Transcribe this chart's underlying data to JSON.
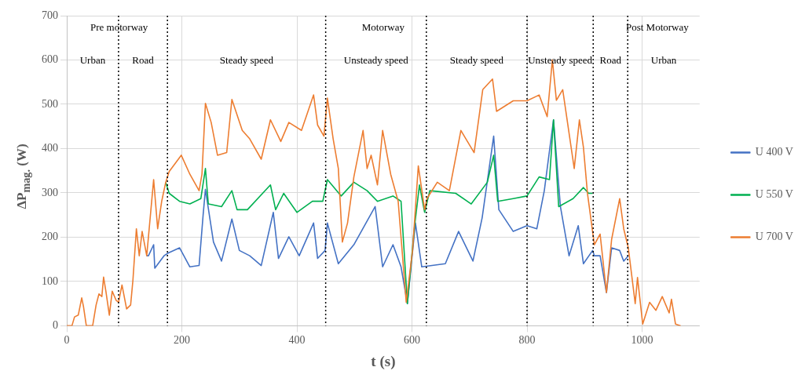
{
  "chart_data": {
    "type": "line",
    "xlabel": "t (s)",
    "ylabel": "ΔP$_{mag.}$ (W)",
    "xlim": [
      0,
      1100
    ],
    "xticks": [
      0,
      200,
      400,
      600,
      800,
      1000
    ],
    "ylim": [
      0,
      700
    ],
    "yticks": [
      0,
      100,
      200,
      300,
      400,
      500,
      600,
      700
    ],
    "grid": true,
    "legend": "right",
    "marker": "none",
    "line_style": "solid",
    "ref_lines": [
      {
        "axis": "x",
        "value": 90,
        "color": "#000000",
        "line_style": "dotted"
      },
      {
        "axis": "x",
        "value": 175,
        "color": "#000000",
        "line_style": "dotted"
      },
      {
        "axis": "x",
        "value": 450,
        "color": "#000000",
        "line_style": "dotted"
      },
      {
        "axis": "x",
        "value": 625,
        "color": "#000000",
        "line_style": "dotted"
      },
      {
        "axis": "x",
        "value": 800,
        "color": "#000000",
        "line_style": "dotted"
      },
      {
        "axis": "x",
        "value": 915,
        "color": "#000000",
        "line_style": "dotted"
      },
      {
        "axis": "x",
        "value": 975,
        "color": "#000000",
        "line_style": "dotted"
      }
    ],
    "annotations": [
      "Pre motorway",
      "Motorway",
      "Post Motorway",
      "Urban",
      "Road",
      "Steady speed",
      "Unsteady speed",
      "Steady speed",
      "Unsteady speed",
      "Road",
      "Urban"
    ],
    "series": [
      {
        "name": "U 400 V",
        "color": "#4472c4",
        "x": [
          139,
          142,
          151,
          153,
          169,
          176,
          196,
          214,
          230,
          237,
          241,
          255,
          269,
          287,
          300,
          318,
          338,
          359,
          368,
          386,
          404,
          429,
          436,
          449,
          453,
          472,
          499,
          536,
          549,
          567,
          581,
          592,
          606,
          617,
          658,
          681,
          706,
          722,
          742,
          751,
          776,
          800,
          817,
          830,
          846,
          858,
          873,
          889,
          898,
          914,
          917,
          927,
          938,
          947,
          961,
          968,
          976
        ],
        "values": [
          158,
          158,
          183,
          130,
          158,
          164,
          176,
          133,
          136,
          250,
          308,
          189,
          146,
          241,
          170,
          158,
          136,
          256,
          152,
          201,
          158,
          232,
          152,
          170,
          232,
          140,
          183,
          269,
          133,
          183,
          133,
          50,
          232,
          133,
          140,
          213,
          146,
          244,
          428,
          262,
          213,
          226,
          219,
          305,
          465,
          269,
          158,
          226,
          140,
          170,
          158,
          158,
          75,
          176,
          170,
          146,
          158
        ]
      },
      {
        "name": "U 550 V",
        "color": "#00b050",
        "x": [
          172,
          178,
          196,
          214,
          233,
          241,
          246,
          269,
          287,
          296,
          314,
          354,
          363,
          377,
          400,
          427,
          445,
          453,
          477,
          499,
          522,
          540,
          567,
          581,
          592,
          604,
          613,
          622,
          631,
          676,
          703,
          731,
          742,
          749,
          776,
          800,
          821,
          839,
          846,
          855,
          880,
          898,
          907,
          914
        ],
        "values": [
          324,
          299,
          281,
          275,
          287,
          355,
          275,
          269,
          305,
          262,
          262,
          318,
          262,
          299,
          256,
          281,
          281,
          330,
          293,
          324,
          305,
          281,
          293,
          281,
          50,
          219,
          318,
          256,
          305,
          299,
          275,
          324,
          385,
          281,
          287,
          293,
          336,
          330,
          465,
          269,
          287,
          312,
          299,
          299
        ]
      },
      {
        "name": "U 700 V",
        "color": "#ed7d31",
        "x": [
          0,
          9,
          13.5,
          20,
          26,
          29,
          34,
          45,
          51,
          56,
          61,
          64,
          68,
          74,
          79,
          86,
          90,
          96,
          104,
          111,
          115,
          121,
          126,
          131,
          139,
          151,
          158,
          165,
          172,
          178,
          199,
          214,
          230,
          235,
          241,
          251,
          262,
          278,
          287,
          305,
          318,
          338,
          354,
          372,
          386,
          408,
          429,
          436,
          447,
          453,
          463,
          472,
          479,
          488,
          499,
          515,
          522,
          529,
          540,
          549,
          563,
          576,
          590,
          601,
          611,
          622,
          626,
          644,
          665,
          685,
          708,
          723,
          740,
          747,
          776,
          800,
          821,
          835,
          844,
          851,
          862,
          882,
          891,
          898,
          905,
          917,
          927,
          938,
          947,
          961,
          968,
          976,
          988,
          992,
          1001,
          1013,
          1024,
          1035,
          1047,
          1051,
          1058,
          1067
        ],
        "values": [
          0,
          0,
          20,
          24,
          63,
          44,
          0,
          0,
          47,
          72,
          66,
          110,
          78,
          24,
          78,
          57,
          53,
          92,
          38,
          47,
          103,
          219,
          158,
          213,
          158,
          330,
          219,
          281,
          324,
          348,
          385,
          342,
          305,
          342,
          502,
          459,
          385,
          391,
          511,
          441,
          422,
          376,
          465,
          416,
          459,
          441,
          521,
          453,
          428,
          514,
          422,
          355,
          189,
          232,
          336,
          441,
          355,
          385,
          318,
          441,
          342,
          281,
          53,
          170,
          361,
          262,
          287,
          324,
          305,
          441,
          391,
          533,
          557,
          484,
          508,
          508,
          521,
          472,
          600,
          509,
          533,
          355,
          465,
          403,
          299,
          183,
          207,
          75,
          195,
          287,
          219,
          176,
          50,
          109,
          4,
          53,
          35,
          66,
          29,
          60,
          4,
          0
        ]
      }
    ]
  }
}
